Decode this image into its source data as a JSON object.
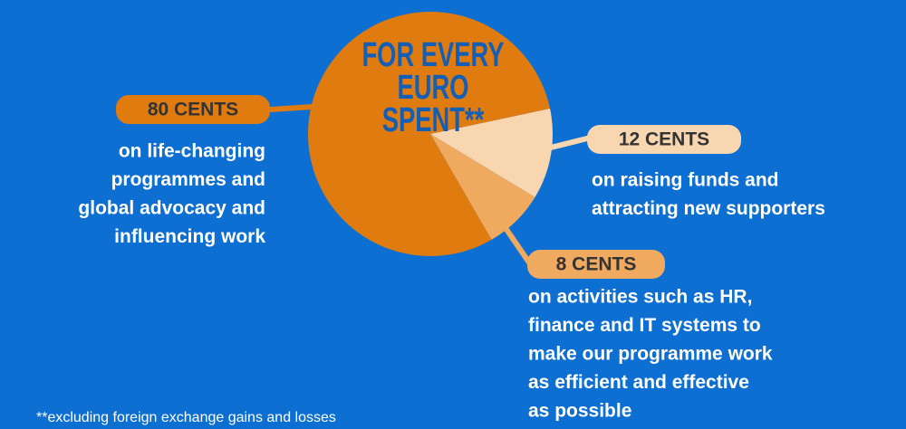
{
  "chart_data": {
    "type": "pie",
    "title": [
      "FOR EVERY",
      "EURO",
      "SPENT**"
    ],
    "values": [
      80,
      12,
      8
    ],
    "value_labels": [
      "80 CENTS",
      "12 CENTS",
      "8 CENTS"
    ],
    "colors": [
      "#e07b10",
      "#f8d6b0",
      "#f0aa60"
    ],
    "descriptions": [
      [
        "on life-changing",
        "programmes and",
        "global advocacy and",
        "influencing work"
      ],
      [
        "on raising funds and",
        "attracting new supporters"
      ],
      [
        "on activities such as HR,",
        "finance and IT systems to",
        "make our programme work",
        "as efficient and effective",
        "as possible"
      ]
    ],
    "footnote": "**excluding foreign exchange gains and losses"
  }
}
